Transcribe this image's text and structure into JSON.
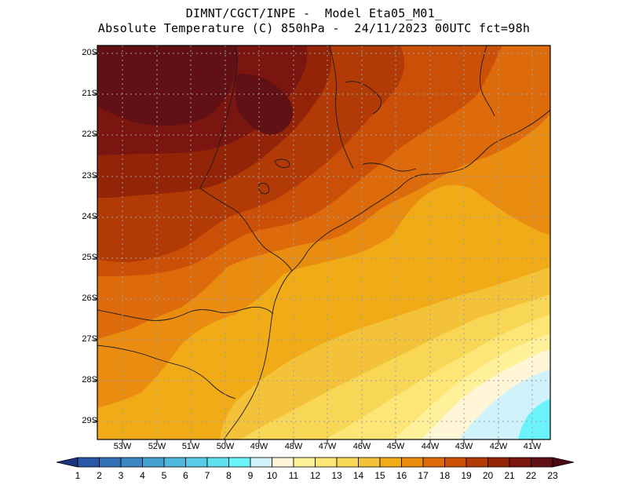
{
  "title": {
    "line1": "DIMNT/CGCT/INPE -  Model Eta05_M01_",
    "line2": "Absolute Temperature (C) 850hPa -  24/11/2023 00UTC fct=98h"
  },
  "map": {
    "variable": "Absolute Temperature (C) 850hPa",
    "lat_labels": [
      "20S",
      "21S",
      "22S",
      "23S",
      "24S",
      "25S",
      "26S",
      "27S",
      "28S",
      "29S"
    ],
    "lon_labels": [
      "53W",
      "52W",
      "51W",
      "50W",
      "49W",
      "48W",
      "47W",
      "46W",
      "45W",
      "44W",
      "43W",
      "42W",
      "41W"
    ]
  },
  "colorbar": {
    "labels": [
      "1",
      "2",
      "3",
      "4",
      "5",
      "6",
      "7",
      "8",
      "9",
      "10",
      "11",
      "12",
      "13",
      "14",
      "15",
      "16",
      "17",
      "18",
      "19",
      "20",
      "21",
      "22",
      "23"
    ],
    "colors": [
      "#1c3f8f",
      "#2a56a8",
      "#3470b6",
      "#3b87c3",
      "#45a0d0",
      "#4fb7dc",
      "#57cce6",
      "#5fe0ef",
      "#6af3fa",
      "#cff2fb",
      "#fff6d8",
      "#fff19a",
      "#fde675",
      "#f8d656",
      "#f4c238",
      "#f0ab16",
      "#e98c10",
      "#dd6a0b",
      "#cc4f08",
      "#b23a06",
      "#932408",
      "#7a1510",
      "#611015"
    ],
    "left_arrow_color": "#1a3580",
    "right_arrow_color": "#4a0a10"
  }
}
